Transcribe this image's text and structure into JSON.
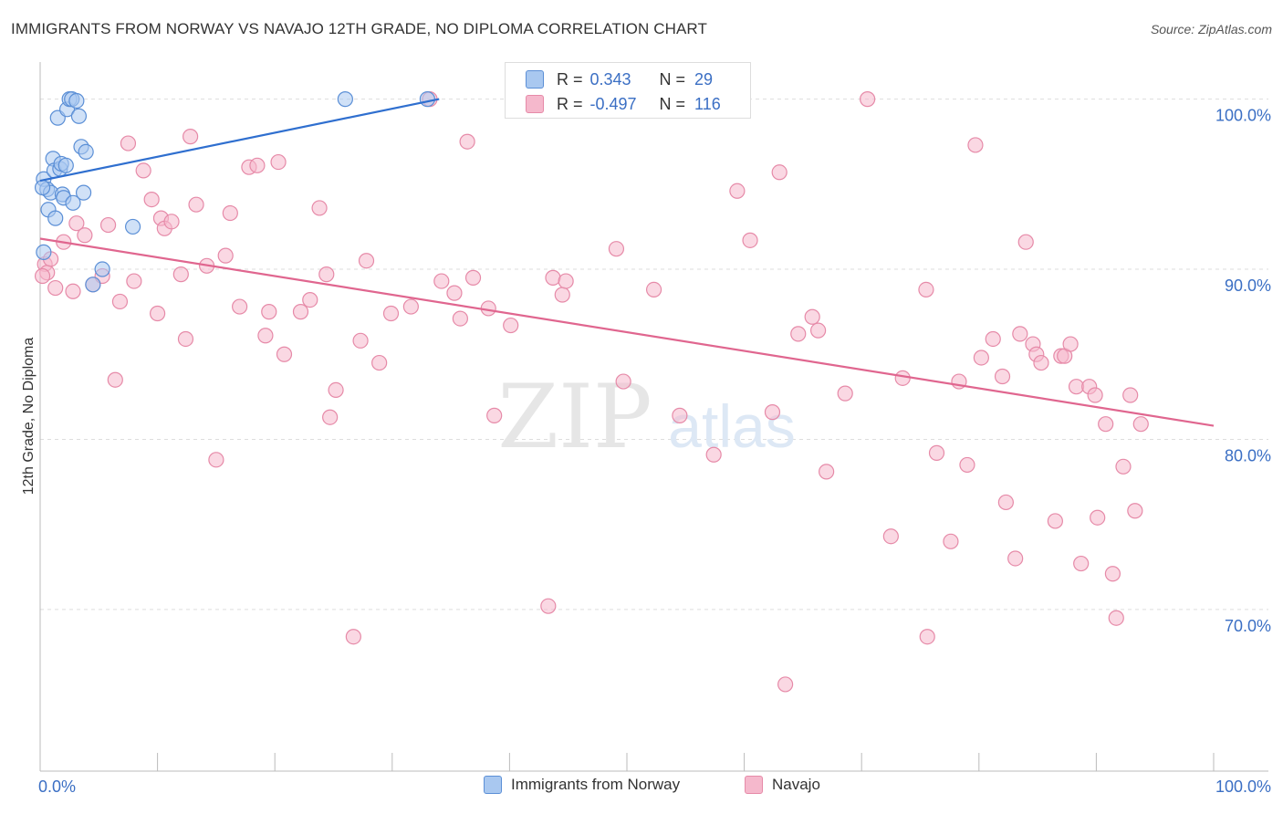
{
  "title": "IMMIGRANTS FROM NORWAY VS NAVAJO 12TH GRADE, NO DIPLOMA CORRELATION CHART",
  "source": "Source: ZipAtlas.com",
  "watermark": {
    "zip": "ZIP",
    "atlas": "atlas"
  },
  "colors": {
    "norway_fill": "#a9c8f0",
    "norway_stroke": "#5b8fd6",
    "norway_line": "#2f6fcf",
    "navajo_fill": "#f5b8cc",
    "navajo_stroke": "#e68aa8",
    "navajo_line": "#e0668f",
    "tick_label": "#3b6fc4",
    "grid": "#dddddd"
  },
  "stats": {
    "rows": [
      {
        "r_key": "R =",
        "r": "0.343",
        "n_key": "N =",
        "n": "29"
      },
      {
        "r_key": "R =",
        "r": "-0.497",
        "n_key": "N =",
        "n": "116"
      }
    ]
  },
  "legend": {
    "items": [
      "Immigrants from Norway",
      "Navajo"
    ]
  },
  "chart_data": {
    "type": "scatter",
    "title": "IMMIGRANTS FROM NORWAY VS NAVAJO 12TH GRADE, NO DIPLOMA CORRELATION CHART",
    "xlabel": "",
    "ylabel": "12th Grade, No Diploma",
    "x_tick_labels": [
      "0.0%",
      "100.0%"
    ],
    "y_tick_labels": [
      "100.0%",
      "90.0%",
      "80.0%",
      "70.0%"
    ],
    "y_ticks": [
      100,
      90,
      80,
      70
    ],
    "xlim": [
      0,
      100
    ],
    "ylim": [
      60.5,
      102.5
    ],
    "grid": true,
    "legend_position": "bottom",
    "series": [
      {
        "name": "Immigrants from Norway",
        "trend": {
          "x0": 0,
          "y0": 95.2,
          "x1": 34,
          "y1": 100.0
        },
        "points": [
          [
            0.3,
            95.3
          ],
          [
            0.6,
            94.7
          ],
          [
            0.7,
            93.5
          ],
          [
            0.9,
            94.5
          ],
          [
            1.1,
            96.5
          ],
          [
            1.2,
            95.8
          ],
          [
            1.3,
            93.0
          ],
          [
            1.5,
            98.9
          ],
          [
            1.7,
            95.9
          ],
          [
            1.8,
            96.2
          ],
          [
            1.9,
            94.4
          ],
          [
            2.0,
            94.2
          ],
          [
            2.2,
            96.1
          ],
          [
            2.3,
            99.4
          ],
          [
            2.5,
            100.0
          ],
          [
            2.7,
            100.0
          ],
          [
            2.8,
            93.9
          ],
          [
            3.1,
            99.9
          ],
          [
            3.3,
            99.0
          ],
          [
            3.5,
            97.2
          ],
          [
            3.7,
            94.5
          ],
          [
            3.9,
            96.9
          ],
          [
            4.5,
            89.1
          ],
          [
            5.3,
            90.0
          ],
          [
            7.9,
            92.5
          ],
          [
            26.0,
            100.0
          ],
          [
            33.0,
            100.0
          ],
          [
            0.2,
            94.8
          ],
          [
            0.3,
            91.0
          ]
        ]
      },
      {
        "name": "Navajo",
        "trend": {
          "x0": 0,
          "y0": 91.8,
          "x1": 100,
          "y1": 80.8
        },
        "points": [
          [
            0.4,
            90.3
          ],
          [
            0.6,
            89.8
          ],
          [
            0.9,
            90.6
          ],
          [
            1.3,
            88.9
          ],
          [
            2.0,
            91.6
          ],
          [
            2.8,
            88.7
          ],
          [
            3.1,
            92.7
          ],
          [
            3.8,
            92.0
          ],
          [
            4.5,
            89.1
          ],
          [
            5.3,
            89.6
          ],
          [
            5.8,
            92.6
          ],
          [
            6.4,
            83.5
          ],
          [
            6.8,
            88.1
          ],
          [
            7.5,
            97.4
          ],
          [
            8.0,
            89.3
          ],
          [
            8.8,
            95.8
          ],
          [
            9.5,
            94.1
          ],
          [
            10.0,
            87.4
          ],
          [
            10.3,
            93.0
          ],
          [
            10.6,
            92.4
          ],
          [
            11.2,
            92.8
          ],
          [
            12.0,
            89.7
          ],
          [
            12.4,
            85.9
          ],
          [
            12.8,
            97.8
          ],
          [
            13.3,
            93.8
          ],
          [
            14.2,
            90.2
          ],
          [
            15.0,
            78.8
          ],
          [
            15.8,
            90.8
          ],
          [
            16.2,
            93.3
          ],
          [
            17.0,
            87.8
          ],
          [
            17.8,
            96.0
          ],
          [
            18.5,
            96.1
          ],
          [
            19.2,
            86.1
          ],
          [
            19.5,
            87.5
          ],
          [
            20.3,
            96.3
          ],
          [
            20.8,
            85.0
          ],
          [
            22.2,
            87.5
          ],
          [
            23.0,
            88.2
          ],
          [
            23.8,
            93.6
          ],
          [
            24.4,
            89.7
          ],
          [
            24.7,
            81.3
          ],
          [
            25.2,
            82.9
          ],
          [
            26.7,
            68.4
          ],
          [
            27.3,
            85.8
          ],
          [
            27.8,
            90.5
          ],
          [
            28.9,
            84.5
          ],
          [
            29.9,
            87.4
          ],
          [
            31.6,
            87.8
          ],
          [
            33.2,
            100.0
          ],
          [
            34.2,
            89.3
          ],
          [
            35.3,
            88.6
          ],
          [
            35.8,
            87.1
          ],
          [
            36.4,
            97.5
          ],
          [
            36.9,
            89.5
          ],
          [
            38.2,
            87.7
          ],
          [
            38.7,
            81.4
          ],
          [
            40.1,
            86.7
          ],
          [
            43.3,
            70.2
          ],
          [
            43.7,
            89.5
          ],
          [
            44.5,
            88.5
          ],
          [
            44.8,
            89.3
          ],
          [
            49.1,
            91.2
          ],
          [
            49.6,
            100.0
          ],
          [
            49.7,
            83.4
          ],
          [
            52.3,
            88.8
          ],
          [
            54.5,
            81.4
          ],
          [
            57.2,
            100.0
          ],
          [
            57.4,
            79.1
          ],
          [
            57.5,
            100.0
          ],
          [
            59.4,
            94.6
          ],
          [
            60.5,
            91.7
          ],
          [
            62.4,
            81.6
          ],
          [
            63.0,
            95.7
          ],
          [
            63.5,
            65.6
          ],
          [
            64.6,
            86.2
          ],
          [
            65.8,
            87.2
          ],
          [
            66.3,
            86.4
          ],
          [
            67.0,
            78.1
          ],
          [
            68.6,
            82.7
          ],
          [
            70.5,
            100.0
          ],
          [
            72.5,
            74.3
          ],
          [
            73.5,
            83.6
          ],
          [
            75.5,
            88.8
          ],
          [
            75.6,
            68.4
          ],
          [
            76.4,
            79.2
          ],
          [
            77.6,
            74.0
          ],
          [
            78.3,
            83.4
          ],
          [
            79.0,
            78.5
          ],
          [
            79.7,
            97.3
          ],
          [
            80.2,
            84.8
          ],
          [
            81.2,
            85.9
          ],
          [
            82.0,
            83.7
          ],
          [
            82.3,
            76.3
          ],
          [
            83.1,
            73.0
          ],
          [
            83.5,
            86.2
          ],
          [
            84.0,
            91.6
          ],
          [
            84.6,
            85.6
          ],
          [
            84.9,
            85.0
          ],
          [
            85.3,
            84.5
          ],
          [
            86.5,
            75.2
          ],
          [
            87.0,
            84.9
          ],
          [
            87.3,
            84.9
          ],
          [
            87.8,
            85.6
          ],
          [
            88.3,
            83.1
          ],
          [
            88.7,
            72.7
          ],
          [
            89.4,
            83.1
          ],
          [
            89.9,
            82.6
          ],
          [
            90.1,
            75.4
          ],
          [
            90.8,
            80.9
          ],
          [
            91.4,
            72.1
          ],
          [
            91.7,
            69.5
          ],
          [
            92.3,
            78.4
          ],
          [
            92.9,
            82.6
          ],
          [
            93.3,
            75.8
          ],
          [
            93.8,
            80.9
          ],
          [
            0.2,
            89.6
          ]
        ]
      }
    ]
  }
}
